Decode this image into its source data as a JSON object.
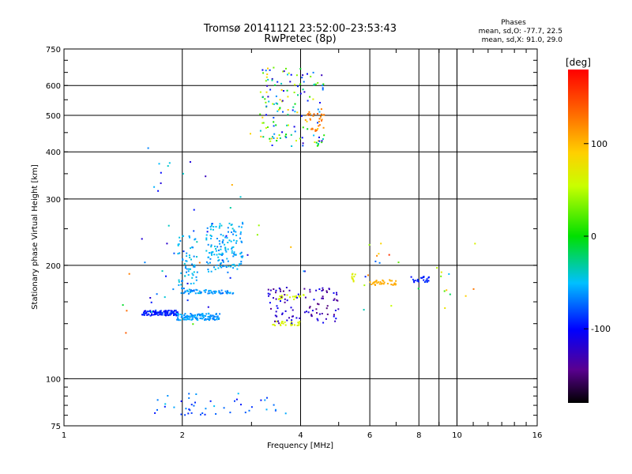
{
  "chart_data": {
    "type": "scatter",
    "title_line1": "Tromsø 20141121 23:52:00–23:53:43",
    "title_line2": "RwPretec (8p)",
    "xlabel": "Frequency [MHz]",
    "ylabel": "Stationary phase Virtual Height [km]",
    "x_scale": "log",
    "y_scale": "log",
    "xlim": [
      1,
      16
    ],
    "ylim": [
      75,
      750
    ],
    "x_ticks": [
      1,
      2,
      4,
      6,
      8,
      10,
      16
    ],
    "x_tick_labels": [
      "1",
      "2",
      "4",
      "6",
      "8",
      "10",
      "16"
    ],
    "y_ticks": [
      75,
      100,
      200,
      300,
      400,
      500,
      600,
      750
    ],
    "y_tick_labels": [
      "75",
      "100",
      "200",
      "300",
      "400",
      "500",
      "600",
      "750"
    ],
    "grid": true,
    "phases": {
      "title": "Phases",
      "line_o": "mean, sd,O: -77.7, 22.5",
      "line_x": "mean, sd,X:  91.0, 29.0"
    },
    "colorbar": {
      "label": "[deg]",
      "range": [
        -180,
        180
      ],
      "ticks": [
        100,
        0,
        -100
      ],
      "tick_labels": [
        "100",
        "0",
        "-100"
      ],
      "colormap": "rainbow"
    },
    "clusters": [
      {
        "x": [
          1.58,
          1.95
        ],
        "y": [
          147,
          152
        ],
        "n": 110,
        "phase": [
          -110,
          -80
        ]
      },
      {
        "x": [
          1.93,
          2.5
        ],
        "y": [
          143,
          149
        ],
        "n": 120,
        "phase": [
          -70,
          -50
        ]
      },
      {
        "x": [
          1.98,
          2.7
        ],
        "y": [
          168,
          172
        ],
        "n": 55,
        "phase": [
          -75,
          -50
        ]
      },
      {
        "x": [
          1.95,
          2.2
        ],
        "y": [
          170,
          240
        ],
        "n": 70,
        "phase": [
          -70,
          -40
        ]
      },
      {
        "x": [
          2.3,
          2.85
        ],
        "y": [
          190,
          260
        ],
        "n": 140,
        "phase": [
          -70,
          -40
        ]
      },
      {
        "x": [
          1.55,
          2.95
        ],
        "y": [
          150,
          380
        ],
        "n": 40,
        "phase": [
          -130,
          -30
        ]
      },
      {
        "x": [
          3.15,
          4.6
        ],
        "y": [
          410,
          670
        ],
        "n": 150,
        "phase": [
          -130,
          100
        ]
      },
      {
        "x": [
          4.1,
          4.6
        ],
        "y": [
          450,
          520
        ],
        "n": 30,
        "phase": [
          110,
          140
        ]
      },
      {
        "x": [
          3.4,
          4.0
        ],
        "y": [
          138,
          142
        ],
        "n": 25,
        "phase": [
          60,
          70
        ]
      },
      {
        "x": [
          3.5,
          4.1
        ],
        "y": [
          162,
          167
        ],
        "n": 20,
        "phase": [
          55,
          65
        ]
      },
      {
        "x": [
          3.3,
          5.0
        ],
        "y": [
          140,
          175
        ],
        "n": 100,
        "phase": [
          -150,
          -100
        ]
      },
      {
        "x": [
          5.4,
          5.6
        ],
        "y": [
          180,
          190
        ],
        "n": 10,
        "phase": [
          60,
          70
        ]
      },
      {
        "x": [
          6.0,
          7.0
        ],
        "y": [
          177,
          183
        ],
        "n": 35,
        "phase": [
          100,
          110
        ]
      },
      {
        "x": [
          7.6,
          8.6
        ],
        "y": [
          180,
          187
        ],
        "n": 25,
        "phase": [
          -100,
          -85
        ]
      },
      {
        "x": [
          5.7,
          11.2
        ],
        "y": [
          145,
          230
        ],
        "n": 25,
        "phase": [
          -100,
          160
        ]
      },
      {
        "x": [
          1.6,
          3.7
        ],
        "y": [
          80,
          92
        ],
        "n": 45,
        "phase": [
          -100,
          -40
        ]
      },
      {
        "x": [
          1.4,
          4.6
        ],
        "y": [
          110,
          490
        ],
        "n": 15,
        "phase": [
          -130,
          160
        ]
      }
    ]
  }
}
